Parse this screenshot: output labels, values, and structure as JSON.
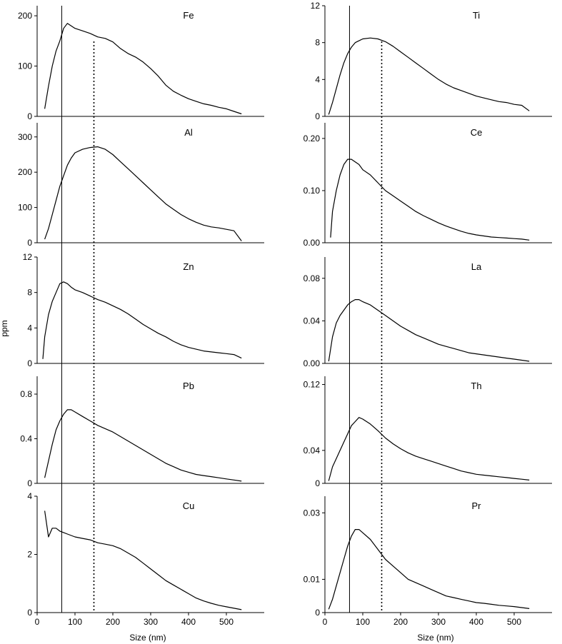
{
  "figure": {
    "ylabel": "ppm",
    "xlabel": "Size (nm)"
  },
  "chart_data": [
    {
      "type": "line",
      "element": "Fe",
      "ylim": [
        0,
        220
      ],
      "yticks": [
        0,
        100,
        200
      ],
      "ytick_labels": [
        "0",
        "100",
        "200"
      ],
      "x": [
        20,
        30,
        40,
        50,
        60,
        70,
        80,
        90,
        100,
        120,
        140,
        160,
        180,
        200,
        220,
        240,
        260,
        280,
        300,
        320,
        340,
        360,
        380,
        400,
        420,
        440,
        460,
        480,
        500,
        520,
        540
      ],
      "values": [
        15,
        60,
        100,
        130,
        150,
        175,
        185,
        180,
        175,
        170,
        165,
        158,
        155,
        148,
        135,
        125,
        118,
        108,
        95,
        80,
        62,
        50,
        42,
        35,
        30,
        25,
        22,
        18,
        15,
        10,
        5
      ]
    },
    {
      "type": "line",
      "element": "Al",
      "ylim": [
        0,
        340
      ],
      "yticks": [
        0,
        100,
        200,
        300
      ],
      "ytick_labels": [
        "0",
        "100",
        "200",
        "300"
      ],
      "x": [
        20,
        30,
        40,
        50,
        60,
        70,
        80,
        90,
        100,
        120,
        140,
        160,
        180,
        200,
        220,
        240,
        260,
        280,
        300,
        320,
        340,
        360,
        380,
        400,
        420,
        440,
        460,
        480,
        500,
        520,
        540
      ],
      "values": [
        10,
        40,
        80,
        120,
        160,
        190,
        220,
        240,
        255,
        265,
        270,
        272,
        265,
        250,
        230,
        210,
        190,
        170,
        150,
        130,
        110,
        95,
        80,
        68,
        58,
        50,
        45,
        42,
        38,
        34,
        5
      ]
    },
    {
      "type": "line",
      "element": "Zn",
      "ylim": [
        0,
        12
      ],
      "yticks": [
        0,
        4,
        8,
        12
      ],
      "ytick_labels": [
        "0",
        "4",
        "8",
        "12"
      ],
      "x": [
        15,
        20,
        30,
        40,
        50,
        60,
        70,
        80,
        90,
        100,
        120,
        140,
        160,
        180,
        200,
        220,
        240,
        260,
        280,
        300,
        320,
        340,
        360,
        380,
        400,
        420,
        440,
        460,
        480,
        500,
        520,
        540
      ],
      "values": [
        0.5,
        3,
        5.5,
        7,
        8,
        9,
        9.2,
        9,
        8.6,
        8.3,
        8,
        7.6,
        7.2,
        6.9,
        6.5,
        6.1,
        5.6,
        5,
        4.4,
        3.9,
        3.4,
        3,
        2.5,
        2.1,
        1.8,
        1.6,
        1.4,
        1.3,
        1.2,
        1.1,
        1,
        0.6
      ]
    },
    {
      "type": "line",
      "element": "Pb",
      "ylim": [
        0,
        0.96
      ],
      "yticks": [
        0,
        0.4,
        0.8
      ],
      "ytick_labels": [
        "0",
        "0.4",
        "0.8"
      ],
      "x": [
        20,
        30,
        40,
        50,
        60,
        70,
        80,
        90,
        100,
        120,
        140,
        160,
        180,
        200,
        220,
        240,
        260,
        280,
        300,
        320,
        340,
        360,
        380,
        400,
        420,
        440,
        460,
        480,
        500,
        520,
        540
      ],
      "values": [
        0.05,
        0.2,
        0.35,
        0.48,
        0.56,
        0.62,
        0.66,
        0.66,
        0.64,
        0.6,
        0.56,
        0.52,
        0.49,
        0.46,
        0.42,
        0.38,
        0.34,
        0.3,
        0.26,
        0.22,
        0.18,
        0.15,
        0.12,
        0.1,
        0.08,
        0.07,
        0.06,
        0.05,
        0.04,
        0.03,
        0.02
      ]
    },
    {
      "type": "line",
      "element": "Cu",
      "ylim": [
        0,
        4
      ],
      "yticks": [
        0,
        2,
        4
      ],
      "ytick_labels": [
        "0",
        "2",
        "4"
      ],
      "x": [
        20,
        30,
        40,
        50,
        60,
        70,
        80,
        90,
        100,
        120,
        140,
        160,
        180,
        200,
        220,
        240,
        260,
        280,
        300,
        320,
        340,
        360,
        380,
        400,
        420,
        440,
        460,
        480,
        500,
        520,
        540
      ],
      "values": [
        3.5,
        2.6,
        2.9,
        2.9,
        2.8,
        2.75,
        2.7,
        2.65,
        2.6,
        2.55,
        2.5,
        2.4,
        2.35,
        2.3,
        2.2,
        2.05,
        1.9,
        1.7,
        1.5,
        1.3,
        1.1,
        0.95,
        0.8,
        0.65,
        0.5,
        0.4,
        0.32,
        0.25,
        0.2,
        0.15,
        0.1
      ]
    },
    {
      "type": "line",
      "element": "Ti",
      "ylim": [
        0,
        12
      ],
      "yticks": [
        0,
        4,
        8,
        12
      ],
      "ytick_labels": [
        "0",
        "4",
        "8",
        "12"
      ],
      "x": [
        10,
        20,
        30,
        40,
        50,
        60,
        70,
        80,
        90,
        100,
        120,
        140,
        160,
        180,
        200,
        220,
        240,
        260,
        280,
        300,
        320,
        340,
        360,
        380,
        400,
        420,
        440,
        460,
        480,
        500,
        520,
        540
      ],
      "values": [
        0.2,
        1.5,
        3,
        4.5,
        5.8,
        6.8,
        7.5,
        8,
        8.2,
        8.4,
        8.5,
        8.4,
        8.1,
        7.6,
        7,
        6.4,
        5.8,
        5.2,
        4.6,
        4,
        3.5,
        3.1,
        2.8,
        2.5,
        2.2,
        2,
        1.8,
        1.6,
        1.5,
        1.3,
        1.2,
        0.6
      ]
    },
    {
      "type": "line",
      "element": "Ce",
      "ylim": [
        0,
        0.23
      ],
      "yticks": [
        0,
        0.1,
        0.2
      ],
      "ytick_labels": [
        "0.00",
        "0.10",
        "0.20"
      ],
      "x": [
        15,
        20,
        30,
        40,
        50,
        60,
        70,
        80,
        90,
        100,
        120,
        140,
        160,
        180,
        200,
        220,
        240,
        260,
        280,
        300,
        320,
        340,
        360,
        380,
        400,
        420,
        440,
        460,
        480,
        500,
        520,
        540
      ],
      "values": [
        0.01,
        0.06,
        0.1,
        0.13,
        0.15,
        0.16,
        0.16,
        0.155,
        0.15,
        0.14,
        0.13,
        0.115,
        0.1,
        0.09,
        0.08,
        0.07,
        0.06,
        0.052,
        0.045,
        0.038,
        0.032,
        0.027,
        0.022,
        0.018,
        0.015,
        0.013,
        0.011,
        0.01,
        0.009,
        0.008,
        0.007,
        0.005
      ]
    },
    {
      "type": "line",
      "element": "La",
      "ylim": [
        0,
        0.1
      ],
      "yticks": [
        0,
        0.04,
        0.08
      ],
      "ytick_labels": [
        "0.00",
        "0.04",
        "0.08"
      ],
      "x": [
        10,
        20,
        30,
        40,
        50,
        60,
        70,
        80,
        90,
        100,
        120,
        140,
        160,
        180,
        200,
        220,
        240,
        260,
        280,
        300,
        320,
        340,
        360,
        380,
        400,
        420,
        440,
        460,
        480,
        500,
        520,
        540
      ],
      "values": [
        0.002,
        0.025,
        0.038,
        0.045,
        0.05,
        0.055,
        0.058,
        0.06,
        0.06,
        0.058,
        0.055,
        0.05,
        0.045,
        0.04,
        0.035,
        0.031,
        0.027,
        0.024,
        0.021,
        0.018,
        0.016,
        0.014,
        0.012,
        0.01,
        0.009,
        0.008,
        0.007,
        0.006,
        0.005,
        0.004,
        0.003,
        0.002
      ]
    },
    {
      "type": "line",
      "element": "Th",
      "ylim": [
        0,
        0.13
      ],
      "yticks": [
        0,
        0.04,
        0.12
      ],
      "ytick_labels": [
        "0",
        "0.04",
        "0.12"
      ],
      "x": [
        10,
        20,
        30,
        40,
        50,
        60,
        70,
        80,
        90,
        100,
        120,
        140,
        160,
        180,
        200,
        220,
        240,
        260,
        280,
        300,
        320,
        340,
        360,
        380,
        400,
        420,
        440,
        460,
        480,
        500,
        520,
        540
      ],
      "values": [
        0.003,
        0.02,
        0.03,
        0.04,
        0.05,
        0.06,
        0.07,
        0.075,
        0.08,
        0.078,
        0.072,
        0.064,
        0.055,
        0.048,
        0.042,
        0.037,
        0.033,
        0.03,
        0.027,
        0.024,
        0.021,
        0.018,
        0.015,
        0.013,
        0.011,
        0.01,
        0.009,
        0.008,
        0.007,
        0.006,
        0.005,
        0.004
      ]
    },
    {
      "type": "line",
      "element": "Pr",
      "ylim": [
        0,
        0.035
      ],
      "yticks": [
        0,
        0.01,
        0.03
      ],
      "ytick_labels": [
        "0",
        "0.01",
        "0.03"
      ],
      "x": [
        10,
        20,
        30,
        40,
        50,
        60,
        70,
        80,
        90,
        100,
        120,
        140,
        160,
        180,
        200,
        220,
        240,
        260,
        280,
        300,
        320,
        340,
        360,
        380,
        400,
        420,
        440,
        460,
        480,
        500,
        520,
        540
      ],
      "values": [
        0.001,
        0.004,
        0.008,
        0.012,
        0.016,
        0.02,
        0.023,
        0.025,
        0.025,
        0.024,
        0.022,
        0.019,
        0.016,
        0.014,
        0.012,
        0.01,
        0.009,
        0.008,
        0.007,
        0.006,
        0.005,
        0.0045,
        0.004,
        0.0035,
        0.003,
        0.0028,
        0.0025,
        0.0022,
        0.002,
        0.0018,
        0.0015,
        0.0012
      ]
    }
  ],
  "markers": {
    "solid_line_x": 65,
    "dotted_line_x": 150
  },
  "x_axis": {
    "xlim": [
      0,
      600
    ],
    "ticks": [
      0,
      100,
      200,
      300,
      400,
      500
    ],
    "tick_labels": [
      "0",
      "100",
      "200",
      "300",
      "400",
      "500"
    ]
  },
  "style": {
    "line_color": "#000000",
    "axis_color": "#000000"
  }
}
